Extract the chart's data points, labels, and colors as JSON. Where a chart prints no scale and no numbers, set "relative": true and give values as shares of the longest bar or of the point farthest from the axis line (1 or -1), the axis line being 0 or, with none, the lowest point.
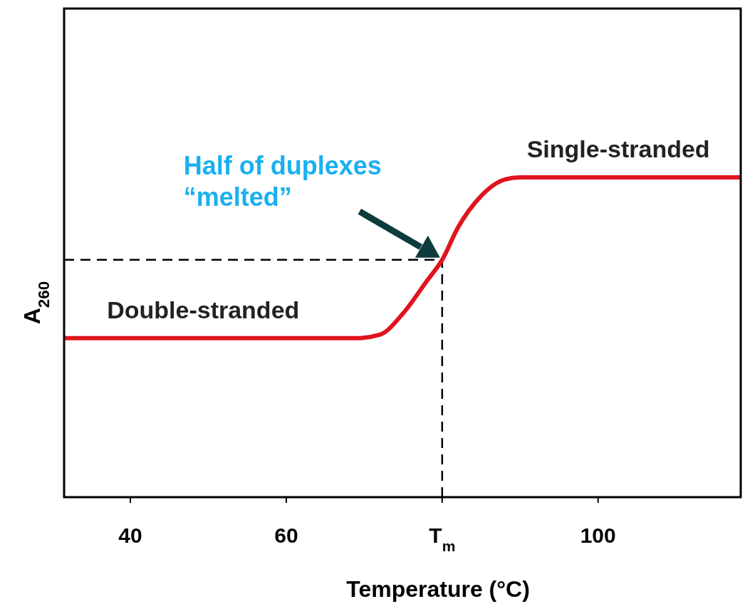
{
  "chart_data": {
    "type": "line",
    "relative": true,
    "xlabel": "Temperature (°C)",
    "ylabel": "A$_{260}$",
    "xlim": [
      31.5,
      118.3
    ],
    "xticks": [
      40,
      60,
      {
        "value": 80,
        "label": "T$_{m}$"
      },
      100
    ],
    "series": [
      {
        "color": "#e0141e",
        "x": [
          31.5,
          69,
          72,
          75,
          78,
          80,
          82,
          85,
          88,
          90,
          118.3
        ],
        "values": [
          0.497,
          0.497,
          0.508,
          0.575,
          0.675,
          0.742,
          0.842,
          0.942,
          0.993,
          1,
          1
        ]
      }
    ],
    "ref_lines": [
      {
        "axis": "y",
        "value": 0.742,
        "line_style": "dashed",
        "color": "#000000"
      },
      {
        "axis": "x",
        "value": 80,
        "line_style": "dashed",
        "color": "#000000"
      }
    ],
    "annotations": [
      {
        "text": "Double-stranded",
        "x": 37,
        "y": 0.497
      },
      {
        "text": "Single-stranded",
        "x": 102.6,
        "y": 1
      },
      "Half of duplexes\n“melted”"
    ],
    "grid": false,
    "line_style": "solid"
  }
}
